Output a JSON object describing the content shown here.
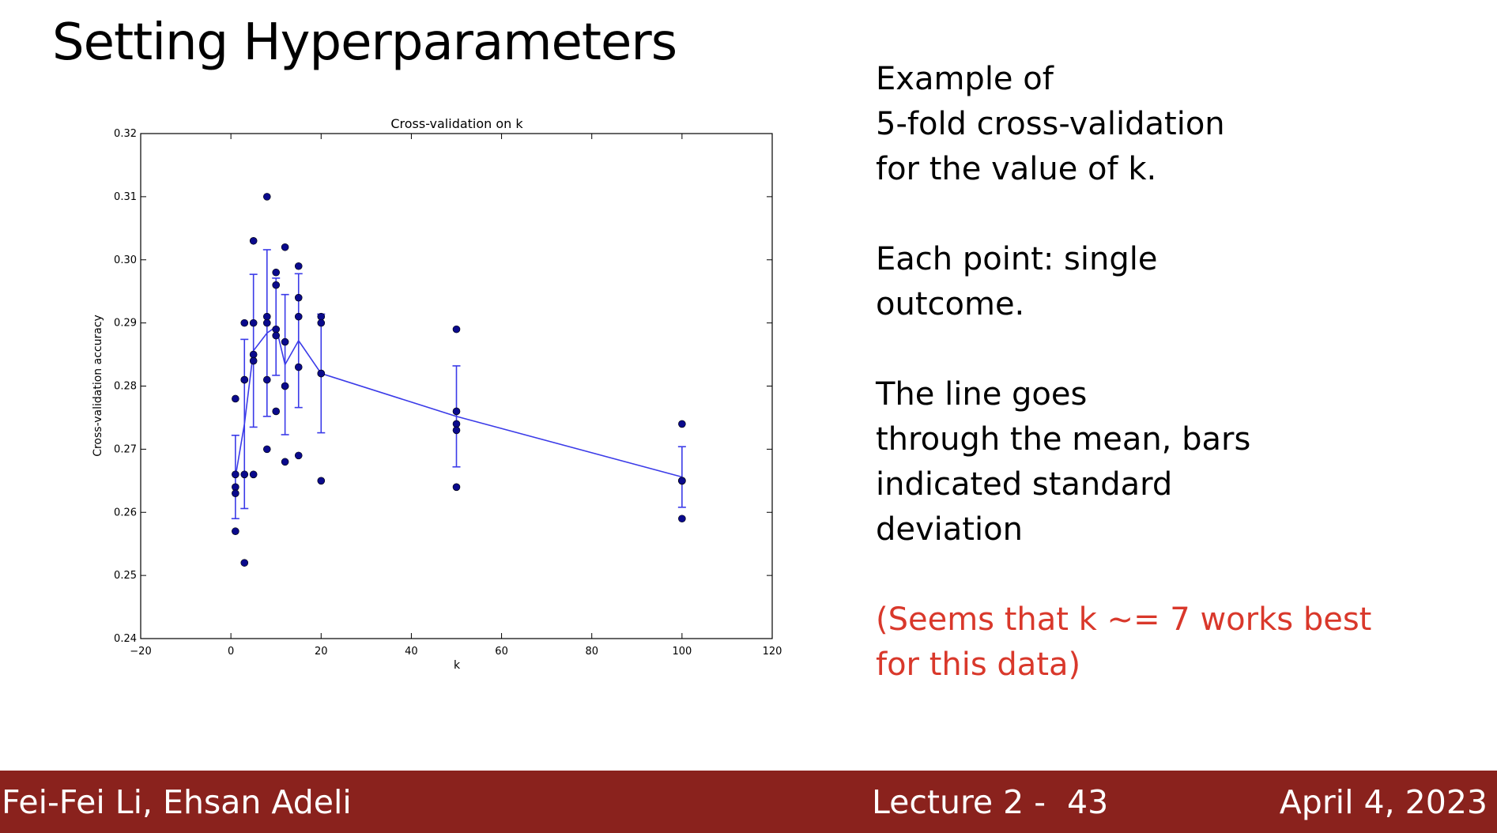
{
  "slide": {
    "title": "Setting Hyperparameters",
    "paragraphs": [
      "Example of\n5-fold cross-validation\nfor the value of k.",
      "Each point: single\noutcome.",
      "The line goes\nthrough the mean, bars\nindicated standard\ndeviation"
    ],
    "note": "(Seems that k ~= 7 works best\nfor this data)"
  },
  "footer": {
    "authors": "Fei-Fei Li, Ehsan Adeli",
    "lecture": "Lecture 2 -",
    "page": "43",
    "date": "April 4, 2023"
  },
  "colors": {
    "footer_bg": "#8a221d",
    "note_text": "#d9382b",
    "point": "#0a0a8c",
    "mean_line": "#3b3be8"
  },
  "chart_data": {
    "type": "scatter",
    "title": "Cross-validation on k",
    "xlabel": "k",
    "ylabel": "Cross-validation accuracy",
    "xlim": [
      -20,
      120
    ],
    "ylim": [
      0.24,
      0.32
    ],
    "xticks": [
      "−20",
      "0",
      "20",
      "40",
      "60",
      "80",
      "100",
      "120"
    ],
    "yticks": [
      "0.24",
      "0.25",
      "0.26",
      "0.27",
      "0.28",
      "0.29",
      "0.30",
      "0.31",
      "0.32"
    ],
    "grid": false,
    "points": [
      {
        "k": 1,
        "accuracies": [
          0.278,
          0.266,
          0.264,
          0.263,
          0.257
        ]
      },
      {
        "k": 3,
        "accuracies": [
          0.29,
          0.281,
          0.281,
          0.266,
          0.252
        ]
      },
      {
        "k": 5,
        "accuracies": [
          0.303,
          0.29,
          0.285,
          0.284,
          0.266
        ]
      },
      {
        "k": 8,
        "accuracies": [
          0.31,
          0.291,
          0.29,
          0.281,
          0.27
        ]
      },
      {
        "k": 10,
        "accuracies": [
          0.298,
          0.296,
          0.289,
          0.288,
          0.276
        ]
      },
      {
        "k": 12,
        "accuracies": [
          0.302,
          0.287,
          0.28,
          0.28,
          0.268
        ]
      },
      {
        "k": 15,
        "accuracies": [
          0.299,
          0.294,
          0.291,
          0.283,
          0.269
        ]
      },
      {
        "k": 20,
        "accuracies": [
          0.291,
          0.29,
          0.282,
          0.282,
          0.265
        ]
      },
      {
        "k": 50,
        "accuracies": [
          0.289,
          0.276,
          0.274,
          0.273,
          0.264
        ]
      },
      {
        "k": 100,
        "accuracies": [
          0.274,
          0.265,
          0.265,
          0.265,
          0.259
        ]
      }
    ],
    "mean_line": {
      "k": [
        1,
        3,
        5,
        8,
        10,
        12,
        15,
        20,
        50,
        100
      ],
      "mean": [
        0.2656,
        0.274,
        0.2856,
        0.2884,
        0.2894,
        0.2834,
        0.2872,
        0.282,
        0.2752,
        0.2656
      ],
      "std": [
        0.0066,
        0.0134,
        0.0121,
        0.0132,
        0.0077,
        0.0111,
        0.0106,
        0.0094,
        0.008,
        0.0048
      ]
    }
  }
}
